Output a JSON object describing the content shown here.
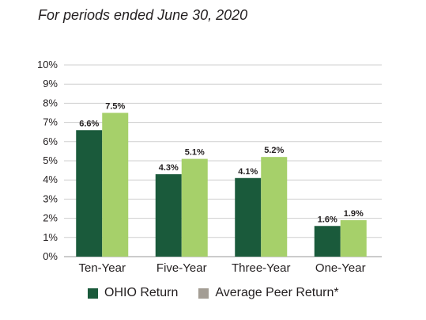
{
  "subtitle": "For periods ended June 30, 2020",
  "colors": {
    "series1": "#1a5a3b",
    "series2": "#a6d06a",
    "legend_swatch2": "#a39d94",
    "grid": "#cfcfcf"
  },
  "chart_data": {
    "type": "bar",
    "title": "",
    "xlabel": "",
    "ylabel": "",
    "categories": [
      "Ten-Year",
      "Five-Year",
      "Three-Year",
      "One-Year"
    ],
    "series": [
      {
        "name": "OHIO Return",
        "values": [
          6.6,
          4.3,
          4.1,
          1.6
        ],
        "labels": [
          "6.6%",
          "4.3%",
          "4.1%",
          "1.6%"
        ]
      },
      {
        "name": "Average Peer Return*",
        "values": [
          7.5,
          5.1,
          5.2,
          1.9
        ],
        "labels": [
          "7.5%",
          "5.1%",
          "5.2%",
          "1.9%"
        ]
      }
    ],
    "ylim": [
      0,
      10
    ],
    "yticks": [
      "0%",
      "1%",
      "2%",
      "3%",
      "4%",
      "5%",
      "6%",
      "7%",
      "8%",
      "9%",
      "10%"
    ],
    "grid": true,
    "legend": "bottom"
  }
}
